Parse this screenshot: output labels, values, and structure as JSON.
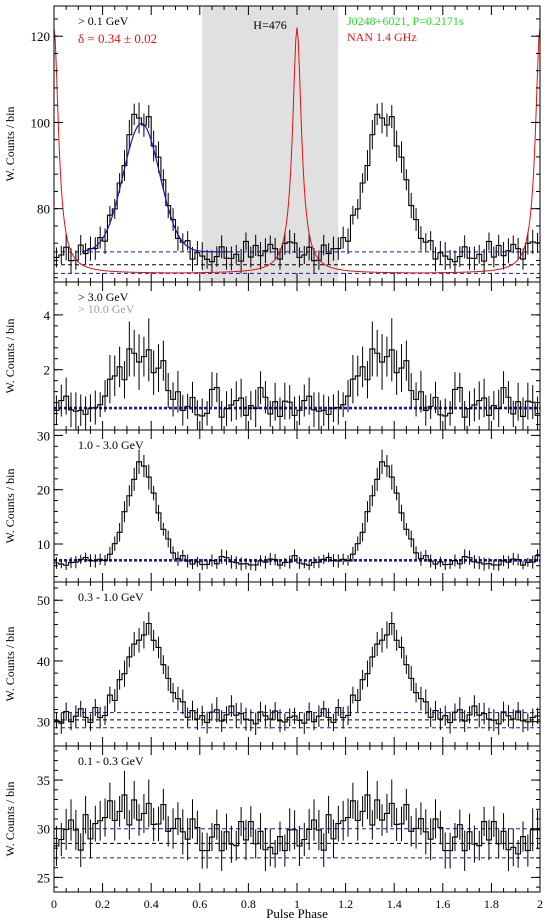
{
  "figure": {
    "x_axis": {
      "label": "Pulse Phase",
      "range": [
        0,
        2
      ],
      "ticks": [
        0,
        0.2,
        0.4,
        0.6,
        0.8,
        1.0,
        1.2,
        1.4,
        1.6,
        1.8,
        2.0
      ],
      "tick_labels": [
        "0",
        "0.2",
        "0.4",
        "0.6",
        "0.8",
        "1",
        "1.2",
        "1.4",
        "1.6",
        "1.8",
        "2"
      ]
    },
    "colors": {
      "histogram": "#000000",
      "fit": "#1a1aa8",
      "radio": "#e01010",
      "background_line": "#1a1aa8",
      "off_pulse_band": "#e0e0e0",
      "title_green": "#22dd22",
      "title_red": "#ee1111",
      "grey_text": "#a0a0a0"
    }
  },
  "chart_data": [
    {
      "type": "line",
      "panel": "above-0.1-GeV",
      "ylabel": "W. Counts / bin",
      "ylim": [
        63,
        127
      ],
      "y_ticks": [
        80,
        100,
        120
      ],
      "energy_label": "> 0.1 GeV",
      "delta_label": "δ = 0.34 ± 0.02",
      "h_test_label": "H=476",
      "pulsar_label": "J0248+6021, P=0.2171s",
      "radio_label": "NAN 1.4 GHz",
      "off_pulse_region": [
        0.61,
        1.17
      ],
      "radio_peak_phase": 1.0,
      "background_levels": [
        70,
        67,
        65
      ],
      "peak_phase": 0.36,
      "peak_sigma": 0.075,
      "base": 70,
      "amplitude": 32,
      "noise": 2.5,
      "seed": 11,
      "fit_curve": true,
      "radio_curve": true
    },
    {
      "type": "line",
      "panel": "above-3.0-GeV",
      "ylabel": "W. Counts / bin",
      "ylim": [
        -0.2,
        5.2
      ],
      "y_ticks": [
        2,
        4
      ],
      "energy_label": "> 3.0 GeV",
      "energy_label_2": "> 10.0 GeV",
      "background_levels": [
        0.6
      ],
      "peak_phase": 0.36,
      "peak_sigma": 0.08,
      "base": 0.8,
      "amplitude": 1.9,
      "noise": 0.55,
      "seed": 23
    },
    {
      "type": "line",
      "panel": "1.0-3.0-GeV",
      "ylabel": "W. Counts / bin",
      "ylim": [
        3,
        31
      ],
      "y_ticks": [
        10,
        20,
        30
      ],
      "energy_label": "1.0 - 3.0 GeV",
      "background_levels": [
        7
      ],
      "peak_phase": 0.36,
      "peak_sigma": 0.06,
      "base": 7,
      "amplitude": 18,
      "noise": 1.0,
      "seed": 37
    },
    {
      "type": "line",
      "panel": "0.3-1.0-GeV",
      "ylabel": "W. Counts / bin",
      "ylim": [
        26,
        53
      ],
      "y_ticks": [
        30,
        40,
        50
      ],
      "energy_label": "0.3 - 1.0 GeV",
      "background_levels": [
        31.5,
        30.3,
        29
      ],
      "peak_phase": 0.38,
      "peak_sigma": 0.075,
      "base": 31,
      "amplitude": 15,
      "noise": 1.6,
      "seed": 53
    },
    {
      "type": "line",
      "panel": "0.1-0.3-GeV",
      "ylabel": "W. Counts / bin",
      "ylim": [
        23.5,
        38.5
      ],
      "y_ticks": [
        25,
        30,
        35
      ],
      "energy_label": "0.1 - 0.3 GeV",
      "background_levels": [
        30,
        28.5,
        27
      ],
      "peak_phase": 0.33,
      "peak_sigma": 0.12,
      "base": 29,
      "amplitude": 3,
      "noise": 1.8,
      "seed": 71
    }
  ]
}
